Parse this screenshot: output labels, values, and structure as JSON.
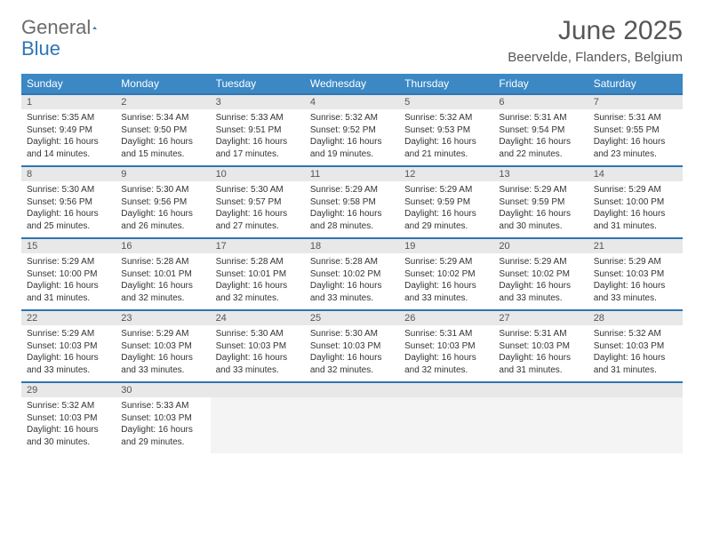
{
  "brand": {
    "first": "General",
    "second": "Blue"
  },
  "title": "June 2025",
  "location": "Beervelde, Flanders, Belgium",
  "colors": {
    "header_bg": "#3b88c4",
    "row_divider": "#2f76b5",
    "daynum_bg": "#e8e8e8",
    "empty_cell_bg": "#f4f4f4",
    "text": "#333333",
    "title_text": "#565656"
  },
  "weekdays": [
    "Sunday",
    "Monday",
    "Tuesday",
    "Wednesday",
    "Thursday",
    "Friday",
    "Saturday"
  ],
  "weeks": [
    {
      "nums": [
        "1",
        "2",
        "3",
        "4",
        "5",
        "6",
        "7"
      ],
      "cells": [
        {
          "sunrise": "Sunrise: 5:35 AM",
          "sunset": "Sunset: 9:49 PM",
          "day1": "Daylight: 16 hours",
          "day2": "and 14 minutes."
        },
        {
          "sunrise": "Sunrise: 5:34 AM",
          "sunset": "Sunset: 9:50 PM",
          "day1": "Daylight: 16 hours",
          "day2": "and 15 minutes."
        },
        {
          "sunrise": "Sunrise: 5:33 AM",
          "sunset": "Sunset: 9:51 PM",
          "day1": "Daylight: 16 hours",
          "day2": "and 17 minutes."
        },
        {
          "sunrise": "Sunrise: 5:32 AM",
          "sunset": "Sunset: 9:52 PM",
          "day1": "Daylight: 16 hours",
          "day2": "and 19 minutes."
        },
        {
          "sunrise": "Sunrise: 5:32 AM",
          "sunset": "Sunset: 9:53 PM",
          "day1": "Daylight: 16 hours",
          "day2": "and 21 minutes."
        },
        {
          "sunrise": "Sunrise: 5:31 AM",
          "sunset": "Sunset: 9:54 PM",
          "day1": "Daylight: 16 hours",
          "day2": "and 22 minutes."
        },
        {
          "sunrise": "Sunrise: 5:31 AM",
          "sunset": "Sunset: 9:55 PM",
          "day1": "Daylight: 16 hours",
          "day2": "and 23 minutes."
        }
      ]
    },
    {
      "nums": [
        "8",
        "9",
        "10",
        "11",
        "12",
        "13",
        "14"
      ],
      "cells": [
        {
          "sunrise": "Sunrise: 5:30 AM",
          "sunset": "Sunset: 9:56 PM",
          "day1": "Daylight: 16 hours",
          "day2": "and 25 minutes."
        },
        {
          "sunrise": "Sunrise: 5:30 AM",
          "sunset": "Sunset: 9:56 PM",
          "day1": "Daylight: 16 hours",
          "day2": "and 26 minutes."
        },
        {
          "sunrise": "Sunrise: 5:30 AM",
          "sunset": "Sunset: 9:57 PM",
          "day1": "Daylight: 16 hours",
          "day2": "and 27 minutes."
        },
        {
          "sunrise": "Sunrise: 5:29 AM",
          "sunset": "Sunset: 9:58 PM",
          "day1": "Daylight: 16 hours",
          "day2": "and 28 minutes."
        },
        {
          "sunrise": "Sunrise: 5:29 AM",
          "sunset": "Sunset: 9:59 PM",
          "day1": "Daylight: 16 hours",
          "day2": "and 29 minutes."
        },
        {
          "sunrise": "Sunrise: 5:29 AM",
          "sunset": "Sunset: 9:59 PM",
          "day1": "Daylight: 16 hours",
          "day2": "and 30 minutes."
        },
        {
          "sunrise": "Sunrise: 5:29 AM",
          "sunset": "Sunset: 10:00 PM",
          "day1": "Daylight: 16 hours",
          "day2": "and 31 minutes."
        }
      ]
    },
    {
      "nums": [
        "15",
        "16",
        "17",
        "18",
        "19",
        "20",
        "21"
      ],
      "cells": [
        {
          "sunrise": "Sunrise: 5:29 AM",
          "sunset": "Sunset: 10:00 PM",
          "day1": "Daylight: 16 hours",
          "day2": "and 31 minutes."
        },
        {
          "sunrise": "Sunrise: 5:28 AM",
          "sunset": "Sunset: 10:01 PM",
          "day1": "Daylight: 16 hours",
          "day2": "and 32 minutes."
        },
        {
          "sunrise": "Sunrise: 5:28 AM",
          "sunset": "Sunset: 10:01 PM",
          "day1": "Daylight: 16 hours",
          "day2": "and 32 minutes."
        },
        {
          "sunrise": "Sunrise: 5:28 AM",
          "sunset": "Sunset: 10:02 PM",
          "day1": "Daylight: 16 hours",
          "day2": "and 33 minutes."
        },
        {
          "sunrise": "Sunrise: 5:29 AM",
          "sunset": "Sunset: 10:02 PM",
          "day1": "Daylight: 16 hours",
          "day2": "and 33 minutes."
        },
        {
          "sunrise": "Sunrise: 5:29 AM",
          "sunset": "Sunset: 10:02 PM",
          "day1": "Daylight: 16 hours",
          "day2": "and 33 minutes."
        },
        {
          "sunrise": "Sunrise: 5:29 AM",
          "sunset": "Sunset: 10:03 PM",
          "day1": "Daylight: 16 hours",
          "day2": "and 33 minutes."
        }
      ]
    },
    {
      "nums": [
        "22",
        "23",
        "24",
        "25",
        "26",
        "27",
        "28"
      ],
      "cells": [
        {
          "sunrise": "Sunrise: 5:29 AM",
          "sunset": "Sunset: 10:03 PM",
          "day1": "Daylight: 16 hours",
          "day2": "and 33 minutes."
        },
        {
          "sunrise": "Sunrise: 5:29 AM",
          "sunset": "Sunset: 10:03 PM",
          "day1": "Daylight: 16 hours",
          "day2": "and 33 minutes."
        },
        {
          "sunrise": "Sunrise: 5:30 AM",
          "sunset": "Sunset: 10:03 PM",
          "day1": "Daylight: 16 hours",
          "day2": "and 33 minutes."
        },
        {
          "sunrise": "Sunrise: 5:30 AM",
          "sunset": "Sunset: 10:03 PM",
          "day1": "Daylight: 16 hours",
          "day2": "and 32 minutes."
        },
        {
          "sunrise": "Sunrise: 5:31 AM",
          "sunset": "Sunset: 10:03 PM",
          "day1": "Daylight: 16 hours",
          "day2": "and 32 minutes."
        },
        {
          "sunrise": "Sunrise: 5:31 AM",
          "sunset": "Sunset: 10:03 PM",
          "day1": "Daylight: 16 hours",
          "day2": "and 31 minutes."
        },
        {
          "sunrise": "Sunrise: 5:32 AM",
          "sunset": "Sunset: 10:03 PM",
          "day1": "Daylight: 16 hours",
          "day2": "and 31 minutes."
        }
      ]
    },
    {
      "nums": [
        "29",
        "30",
        "",
        "",
        "",
        "",
        ""
      ],
      "cells": [
        {
          "sunrise": "Sunrise: 5:32 AM",
          "sunset": "Sunset: 10:03 PM",
          "day1": "Daylight: 16 hours",
          "day2": "and 30 minutes."
        },
        {
          "sunrise": "Sunrise: 5:33 AM",
          "sunset": "Sunset: 10:03 PM",
          "day1": "Daylight: 16 hours",
          "day2": "and 29 minutes."
        },
        null,
        null,
        null,
        null,
        null
      ]
    }
  ]
}
